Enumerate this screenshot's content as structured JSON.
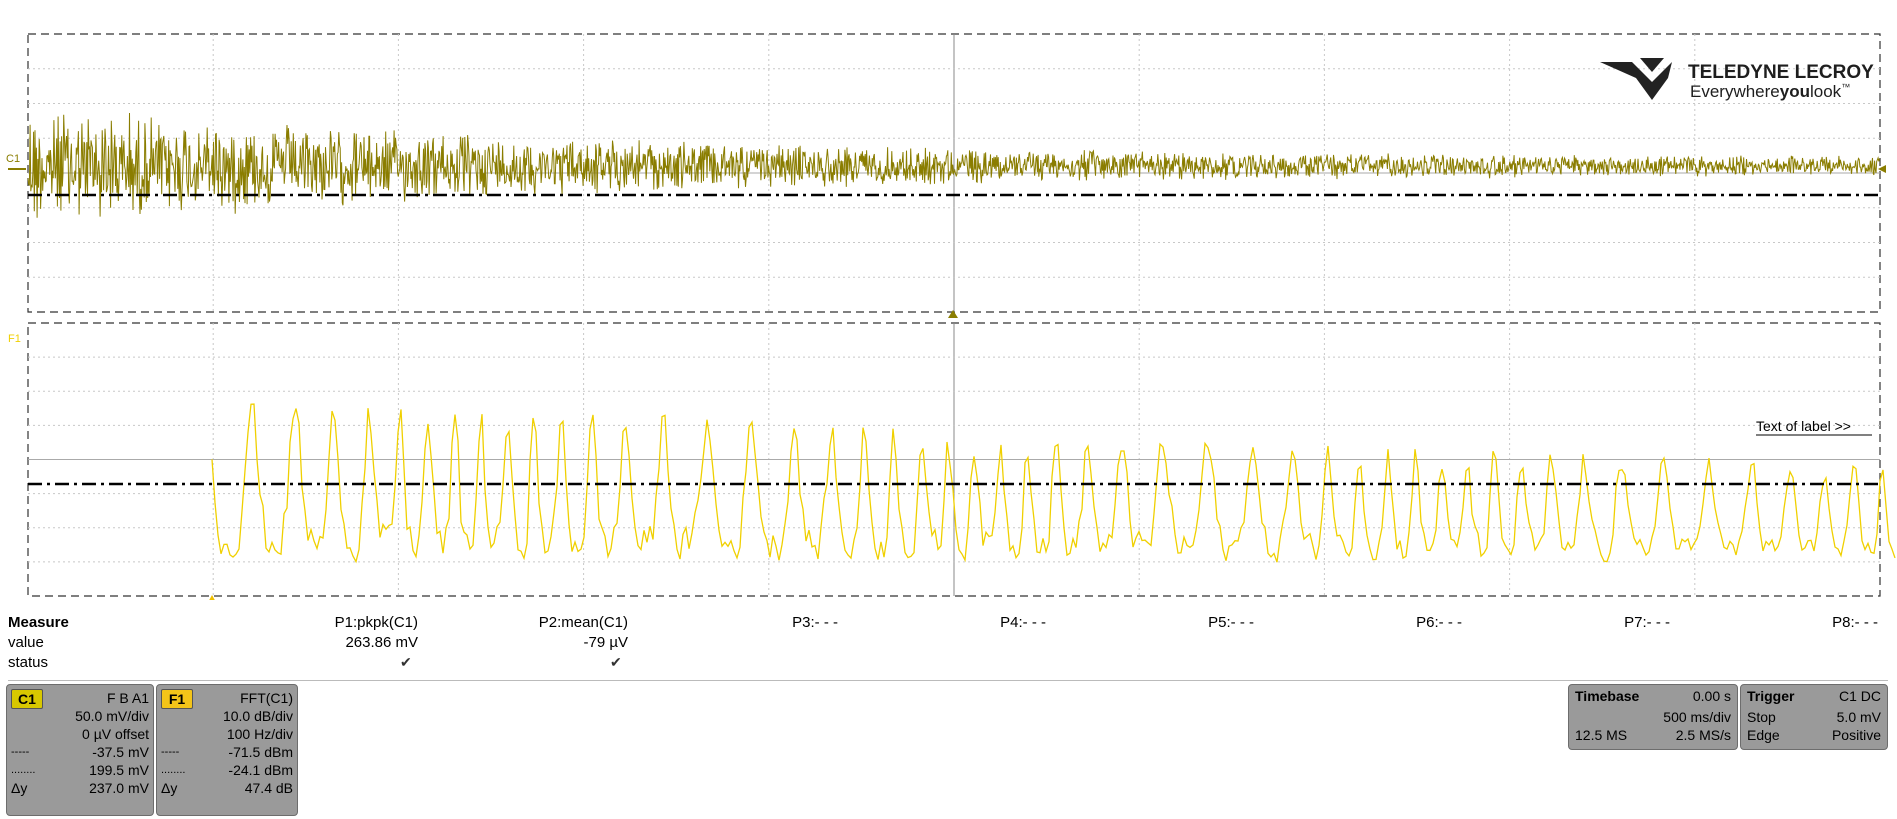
{
  "colors": {
    "c1": "#8a7d00",
    "f1": "#f0d000",
    "grid": "#c8c8c8",
    "bg": "#ffffff"
  },
  "c1_label": "C1",
  "f1_label": "F1",
  "logo": {
    "brand": "TELEDYNE LECROY",
    "tagline_1": "Everywhere",
    "tagline_2": "you",
    "tagline_3": "look",
    "tm": "™"
  },
  "label_text": "Text of label >>",
  "measure": {
    "title": "Measure",
    "row_value": "value",
    "row_status": "status",
    "params": [
      {
        "name": "P1:pkpk(C1)",
        "value": "263.86 mV",
        "status": "✔"
      },
      {
        "name": "P2:mean(C1)",
        "value": "-79 µV",
        "status": "✔"
      },
      {
        "name": "P3:- - -",
        "value": "",
        "status": ""
      },
      {
        "name": "P4:- - -",
        "value": "",
        "status": ""
      },
      {
        "name": "P5:- - -",
        "value": "",
        "status": ""
      },
      {
        "name": "P6:- - -",
        "value": "",
        "status": ""
      },
      {
        "name": "P7:- - -",
        "value": "",
        "status": ""
      },
      {
        "name": "P8:- - -",
        "value": "",
        "status": ""
      }
    ]
  },
  "c1_box": {
    "tag": "C1",
    "flags": "F  B  A1",
    "vdiv": "50.0 mV/div",
    "offset": "0 µV offset",
    "cursor1_sym": "-----",
    "cursor1": "-37.5 mV",
    "cursor2_sym": "........",
    "cursor2": "199.5 mV",
    "dy_sym": "Δy",
    "dy": "237.0 mV"
  },
  "f1_box": {
    "tag": "F1",
    "func": "FFT(C1)",
    "vdiv": "10.0 dB/div",
    "hdiv": "100 Hz/div",
    "cursor1_sym": "-----",
    "cursor1": "-71.5 dBm",
    "cursor2_sym": "........",
    "cursor2": "-24.1 dBm",
    "dy_sym": "Δy",
    "dy": "47.4 dB"
  },
  "timebase": {
    "title": "Timebase",
    "delay": "0.00 s",
    "tdiv": "500 ms/div",
    "samples": "12.5 MS",
    "rate": "2.5 MS/s"
  },
  "trigger": {
    "title": "Trigger",
    "src": "C1  DC",
    "mode": "Stop",
    "level": "5.0 mV",
    "type": "Edge",
    "slope": "Positive"
  }
}
